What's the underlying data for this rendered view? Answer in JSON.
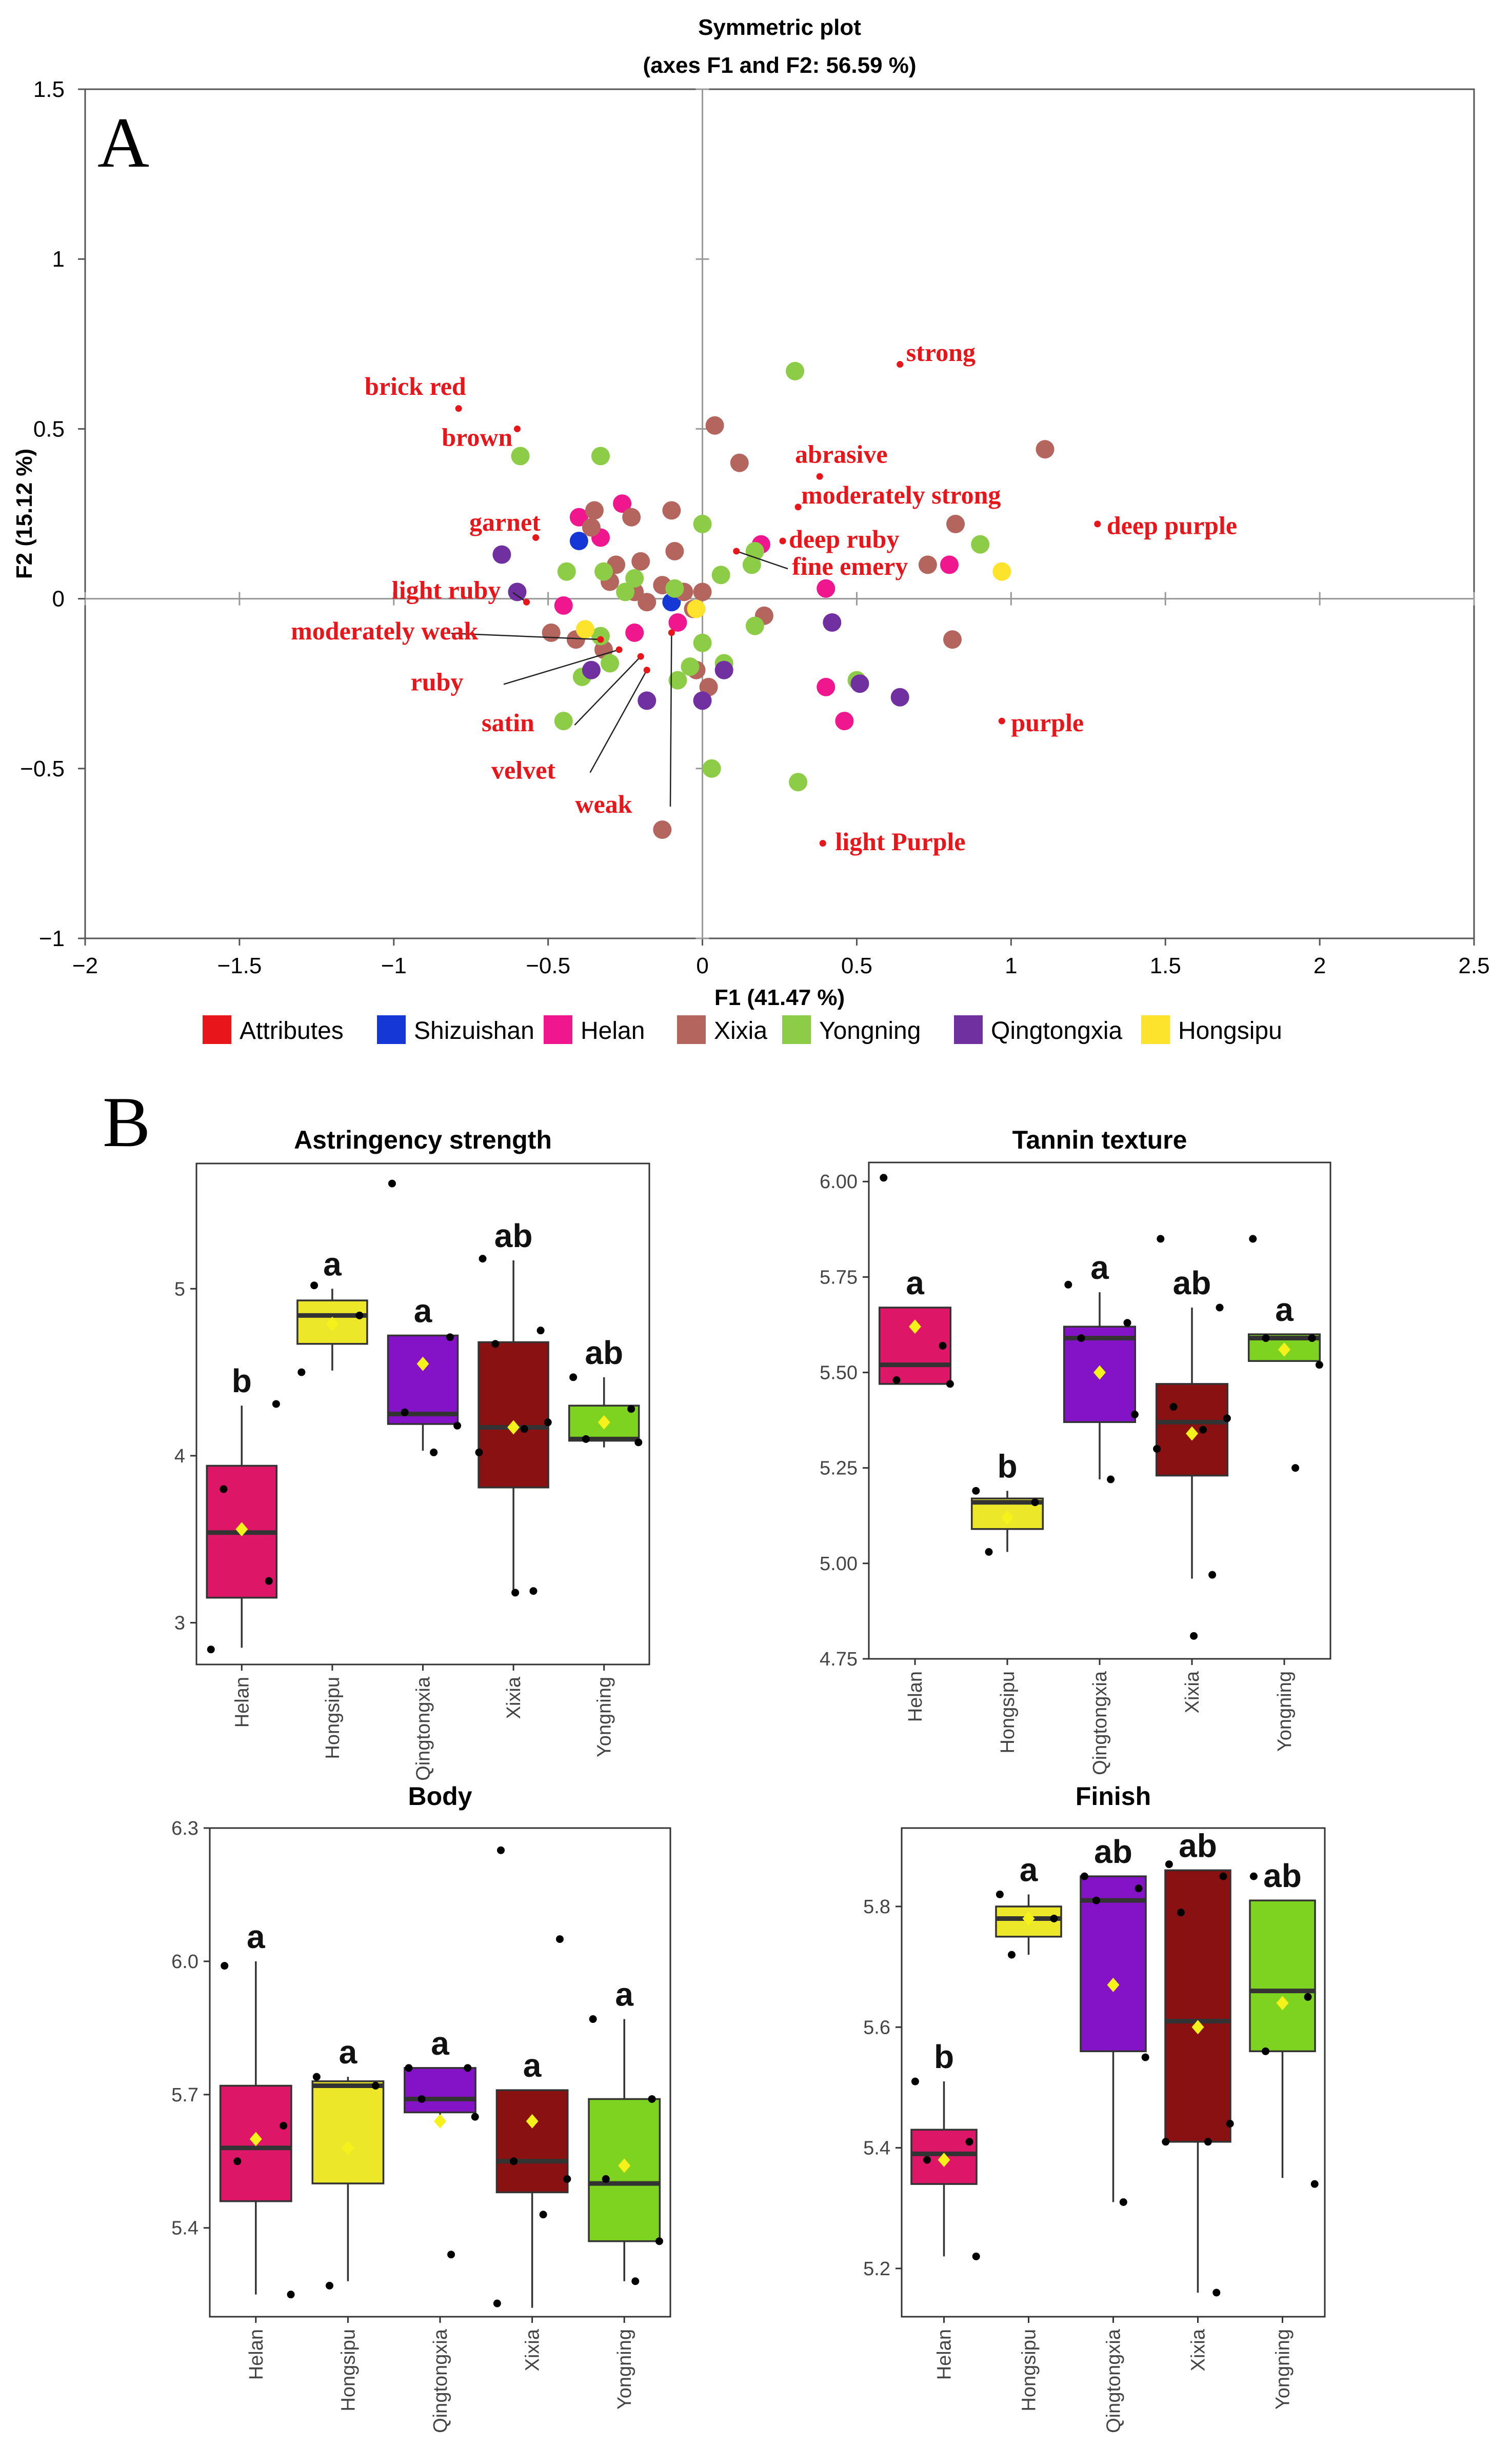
{
  "panel_labels": {
    "a": "A",
    "b": "B"
  },
  "chart_data": [
    {
      "type": "scatter",
      "title": "Symmetric plot",
      "subtitle": "(axes F1 and F2: 56.59 %)",
      "xlabel": "F1 (41.47 %)",
      "ylabel": "F2 (15.12 %)",
      "xlim": [
        -2,
        2.5
      ],
      "ylim": [
        -1,
        1.5
      ],
      "xticks": [
        -2,
        -1.5,
        -1,
        -0.5,
        0,
        0.5,
        1,
        1.5,
        2,
        2.5
      ],
      "xtick_labels": [
        "−2",
        "−1.5",
        "−1",
        "−0.5",
        "0",
        "0.5",
        "1",
        "1.5",
        "2",
        "2.5"
      ],
      "yticks": [
        -1,
        -0.5,
        0,
        0.5,
        1,
        1.5
      ],
      "ytick_labels": [
        "−1",
        "−0.5",
        "0",
        "0.5",
        "1",
        "1.5"
      ],
      "colors": {
        "Attributes": "#e8151b",
        "Shizuishan": "#1537d6",
        "Helan": "#f0168e",
        "Xixia": "#b4655e",
        "Yongning": "#8ccc46",
        "Qingtongxia": "#7030a0",
        "Hongsipu": "#fde32b"
      },
      "legend": [
        "Attributes",
        "Shizuishan",
        "Helan",
        "Xixia",
        "Yongning",
        "Qingtongxia",
        "Hongsipu"
      ],
      "attributes": [
        {
          "label": "brick red",
          "x": -0.79,
          "y": 0.56,
          "lx": -0.93,
          "ly": 0.6,
          "anchor": "middle"
        },
        {
          "label": "brown",
          "x": -0.6,
          "y": 0.5,
          "lx": -0.73,
          "ly": 0.45,
          "anchor": "middle"
        },
        {
          "label": "garnet",
          "x": -0.54,
          "y": 0.18,
          "lx": -0.64,
          "ly": 0.2,
          "anchor": "middle"
        },
        {
          "label": "light ruby",
          "x": -0.57,
          "y": -0.01,
          "lx": -0.83,
          "ly": 0.0,
          "anchor": "middle",
          "line": true
        },
        {
          "label": "moderately weak",
          "x": -0.33,
          "y": -0.12,
          "lx": -1.03,
          "ly": -0.12,
          "anchor": "middle",
          "line": true
        },
        {
          "label": "ruby",
          "x": -0.27,
          "y": -0.15,
          "lx": -0.86,
          "ly": -0.27,
          "anchor": "middle",
          "line": true
        },
        {
          "label": "satin",
          "x": -0.2,
          "y": -0.17,
          "lx": -0.63,
          "ly": -0.39,
          "anchor": "middle",
          "line": true
        },
        {
          "label": "velvet",
          "x": -0.18,
          "y": -0.21,
          "lx": -0.58,
          "ly": -0.53,
          "anchor": "middle",
          "line": true
        },
        {
          "label": "weak",
          "x": -0.1,
          "y": -0.1,
          "lx": -0.32,
          "ly": -0.63,
          "anchor": "middle",
          "line": true
        },
        {
          "label": "strong",
          "x": 0.64,
          "y": 0.69,
          "lx": 0.66,
          "ly": 0.7,
          "anchor": "start"
        },
        {
          "label": "abrasive",
          "x": 0.38,
          "y": 0.36,
          "lx": 0.3,
          "ly": 0.4,
          "anchor": "start"
        },
        {
          "label": "moderately strong",
          "x": 0.31,
          "y": 0.27,
          "lx": 0.32,
          "ly": 0.28,
          "anchor": "start"
        },
        {
          "label": "deep purple",
          "x": 1.28,
          "y": 0.22,
          "lx": 1.31,
          "ly": 0.19,
          "anchor": "start"
        },
        {
          "label": "deep ruby",
          "x": 0.26,
          "y": 0.17,
          "lx": 0.28,
          "ly": 0.15,
          "anchor": "start"
        },
        {
          "label": "fine emery",
          "x": 0.11,
          "y": 0.14,
          "lx": 0.29,
          "ly": 0.07,
          "anchor": "start",
          "line": true
        },
        {
          "label": "purple",
          "x": 0.97,
          "y": -0.36,
          "lx": 1.0,
          "ly": -0.39,
          "anchor": "start"
        },
        {
          "label": "light Purple",
          "x": 0.39,
          "y": -0.72,
          "lx": 0.43,
          "ly": -0.74,
          "anchor": "start"
        }
      ],
      "points": {
        "Shizuishan": [
          [
            -0.4,
            0.17
          ],
          [
            -0.1,
            -0.01
          ]
        ],
        "Helan": [
          [
            -0.4,
            0.24
          ],
          [
            -0.33,
            0.18
          ],
          [
            -0.26,
            0.28
          ],
          [
            -0.45,
            -0.02
          ],
          [
            -0.22,
            -0.1
          ],
          [
            -0.08,
            -0.07
          ],
          [
            0.19,
            0.16
          ],
          [
            0.4,
            0.03
          ],
          [
            0.4,
            -0.26
          ],
          [
            0.46,
            -0.36
          ],
          [
            0.8,
            0.1
          ]
        ],
        "Xixia": [
          [
            -0.35,
            0.26
          ],
          [
            -0.23,
            0.24
          ],
          [
            -0.1,
            0.26
          ],
          [
            0.04,
            0.51
          ],
          [
            0.12,
            0.4
          ],
          [
            -0.36,
            0.21
          ],
          [
            -0.28,
            0.1
          ],
          [
            -0.2,
            0.11
          ],
          [
            -0.13,
            0.04
          ],
          [
            -0.09,
            0.14
          ],
          [
            -0.3,
            0.05
          ],
          [
            -0.22,
            0.02
          ],
          [
            -0.18,
            -0.01
          ],
          [
            -0.06,
            0.02
          ],
          [
            -0.03,
            -0.03
          ],
          [
            0.0,
            0.02
          ],
          [
            0.2,
            -0.05
          ],
          [
            -0.49,
            -0.1
          ],
          [
            -0.41,
            -0.12
          ],
          [
            -0.32,
            -0.15
          ],
          [
            -0.02,
            -0.21
          ],
          [
            0.02,
            -0.26
          ],
          [
            -0.13,
            -0.68
          ],
          [
            0.73,
            0.1
          ],
          [
            0.82,
            0.22
          ],
          [
            0.81,
            -0.12
          ],
          [
            1.11,
            0.44
          ]
        ],
        "Yongning": [
          [
            -0.59,
            0.42
          ],
          [
            -0.33,
            0.42
          ],
          [
            0.3,
            0.67
          ],
          [
            -0.09,
            0.03
          ],
          [
            -0.22,
            0.06
          ],
          [
            0.06,
            0.07
          ],
          [
            0.17,
            0.14
          ],
          [
            0.0,
            0.22
          ],
          [
            0.16,
            0.1
          ],
          [
            -0.32,
            0.08
          ],
          [
            -0.25,
            0.02
          ],
          [
            -0.44,
            0.08
          ],
          [
            0.0,
            -0.13
          ],
          [
            0.07,
            -0.19
          ],
          [
            -0.04,
            -0.2
          ],
          [
            0.17,
            -0.08
          ],
          [
            -0.33,
            -0.11
          ],
          [
            -0.08,
            -0.24
          ],
          [
            -0.3,
            -0.19
          ],
          [
            -0.39,
            -0.23
          ],
          [
            0.5,
            -0.24
          ],
          [
            0.9,
            0.16
          ],
          [
            0.03,
            -0.5
          ],
          [
            0.31,
            -0.54
          ],
          [
            -0.45,
            -0.36
          ]
        ],
        "Qingtongxia": [
          [
            -0.65,
            0.13
          ],
          [
            -0.6,
            0.02
          ],
          [
            -0.36,
            -0.21
          ],
          [
            -0.18,
            -0.3
          ],
          [
            0.07,
            -0.21
          ],
          [
            0.0,
            -0.3
          ],
          [
            0.51,
            -0.25
          ],
          [
            0.64,
            -0.29
          ],
          [
            0.42,
            -0.07
          ]
        ],
        "Hongsipu": [
          [
            -0.02,
            -0.03
          ],
          [
            -0.38,
            -0.09
          ],
          [
            0.97,
            0.08
          ]
        ]
      }
    },
    {
      "type": "box",
      "title": "Astringency strength",
      "categories": [
        "Helan",
        "Hongsipu",
        "Qingtongxia",
        "Xixia",
        "Yongning"
      ],
      "ylim": [
        2.75,
        5.75
      ],
      "yticks": [
        3,
        4,
        5
      ],
      "ytick_labels": [
        "3",
        "4",
        "5"
      ],
      "boxes": [
        {
          "q1": 3.15,
          "median": 3.54,
          "q3": 3.94,
          "wlo": 2.85,
          "whi": 4.3,
          "mean": 3.56,
          "letter": "b",
          "points": [
            2.84,
            3.25,
            3.8,
            4.31
          ]
        },
        {
          "q1": 4.67,
          "median": 4.84,
          "q3": 4.93,
          "wlo": 4.51,
          "whi": 5.0,
          "mean": 4.79,
          "letter": "a",
          "points": [
            4.5,
            4.84,
            5.02
          ]
        },
        {
          "q1": 4.19,
          "median": 4.25,
          "q3": 4.72,
          "wlo": 4.03,
          "whi": 4.72,
          "mean": 4.55,
          "letter": "a",
          "points": [
            5.63,
            4.71,
            4.26,
            4.18,
            4.02
          ]
        },
        {
          "q1": 3.81,
          "median": 4.17,
          "q3": 4.68,
          "wlo": 3.18,
          "whi": 5.17,
          "mean": 4.17,
          "letter": "ab",
          "points": [
            5.18,
            4.75,
            4.67,
            4.2,
            4.16,
            4.02,
            3.19,
            3.18
          ]
        },
        {
          "q1": 4.09,
          "median": 4.1,
          "q3": 4.3,
          "wlo": 4.05,
          "whi": 4.47,
          "mean": 4.2,
          "letter": "ab",
          "points": [
            4.47,
            4.28,
            4.1,
            4.08
          ]
        }
      ]
    },
    {
      "type": "box",
      "title": "Tannin texture",
      "categories": [
        "Helan",
        "Hongsipu",
        "Qingtongxia",
        "Xixia",
        "Yongning"
      ],
      "ylim": [
        4.75,
        6.05
      ],
      "yticks": [
        4.75,
        5.0,
        5.25,
        5.5,
        5.75,
        6.0
      ],
      "ytick_labels": [
        "4.75",
        "5.00",
        "5.25",
        "5.50",
        "5.75",
        "6.00"
      ],
      "boxes": [
        {
          "q1": 5.47,
          "median": 5.52,
          "q3": 5.67,
          "wlo": 5.47,
          "whi": 5.67,
          "mean": 5.62,
          "letter": "a",
          "points": [
            6.01,
            5.57,
            5.48,
            5.47
          ]
        },
        {
          "q1": 5.09,
          "median": 5.16,
          "q3": 5.17,
          "wlo": 5.03,
          "whi": 5.19,
          "mean": 5.12,
          "letter": "b",
          "points": [
            5.19,
            5.16,
            5.03
          ]
        },
        {
          "q1": 5.37,
          "median": 5.59,
          "q3": 5.62,
          "wlo": 5.22,
          "whi": 5.71,
          "mean": 5.5,
          "letter": "a",
          "points": [
            5.73,
            5.63,
            5.59,
            5.39,
            5.22
          ]
        },
        {
          "q1": 5.23,
          "median": 5.37,
          "q3": 5.47,
          "wlo": 4.96,
          "whi": 5.67,
          "mean": 5.34,
          "letter": "ab",
          "points": [
            5.85,
            5.67,
            5.41,
            5.38,
            5.35,
            5.3,
            4.97,
            4.81
          ]
        },
        {
          "q1": 5.53,
          "median": 5.59,
          "q3": 5.6,
          "wlo": 5.53,
          "whi": 5.6,
          "mean": 5.56,
          "letter": "a",
          "points": [
            5.85,
            5.59,
            5.59,
            5.52,
            5.25
          ]
        }
      ]
    },
    {
      "type": "box",
      "title": "Body",
      "categories": [
        "Helan",
        "Hongsipu",
        "Qingtongxia",
        "Xixia",
        "Yongning"
      ],
      "ylim": [
        5.2,
        6.3
      ],
      "yticks": [
        5.4,
        5.7,
        6.0,
        6.3
      ],
      "ytick_labels": [
        "5.4",
        "5.7",
        "6.0",
        "6.3"
      ],
      "boxes": [
        {
          "q1": 5.46,
          "median": 5.58,
          "q3": 5.72,
          "wlo": 5.25,
          "whi": 6.0,
          "mean": 5.6,
          "letter": "a",
          "points": [
            5.99,
            5.63,
            5.55,
            5.25
          ]
        },
        {
          "q1": 5.5,
          "median": 5.72,
          "q3": 5.73,
          "wlo": 5.28,
          "whi": 5.74,
          "mean": 5.58,
          "letter": "a",
          "points": [
            5.74,
            5.72,
            5.27
          ]
        },
        {
          "q1": 5.66,
          "median": 5.69,
          "q3": 5.76,
          "wlo": 5.65,
          "whi": 5.76,
          "mean": 5.64,
          "letter": "a",
          "points": [
            5.76,
            5.76,
            5.69,
            5.65,
            5.34
          ]
        },
        {
          "q1": 5.48,
          "median": 5.55,
          "q3": 5.71,
          "wlo": 5.22,
          "whi": 5.71,
          "mean": 5.64,
          "letter": "a",
          "points": [
            6.25,
            6.05,
            5.55,
            5.51,
            5.43,
            5.23
          ]
        },
        {
          "q1": 5.37,
          "median": 5.5,
          "q3": 5.69,
          "wlo": 5.28,
          "whi": 5.87,
          "mean": 5.54,
          "letter": "a",
          "points": [
            5.87,
            5.69,
            5.51,
            5.37,
            5.28
          ]
        }
      ]
    },
    {
      "type": "box",
      "title": "Finish",
      "categories": [
        "Helan",
        "Hongsipu",
        "Qingtongxia",
        "Xixia",
        "Yongning"
      ],
      "ylim": [
        5.12,
        5.93
      ],
      "yticks": [
        5.2,
        5.4,
        5.6,
        5.8
      ],
      "ytick_labels": [
        "5.2",
        "5.4",
        "5.6",
        "5.8"
      ],
      "boxes": [
        {
          "q1": 5.34,
          "median": 5.39,
          "q3": 5.43,
          "wlo": 5.22,
          "whi": 5.51,
          "mean": 5.38,
          "letter": "b",
          "points": [
            5.51,
            5.41,
            5.38,
            5.22
          ]
        },
        {
          "q1": 5.75,
          "median": 5.78,
          "q3": 5.8,
          "wlo": 5.72,
          "whi": 5.82,
          "mean": 5.78,
          "letter": "a",
          "points": [
            5.82,
            5.78,
            5.72
          ]
        },
        {
          "q1": 5.56,
          "median": 5.81,
          "q3": 5.85,
          "wlo": 5.31,
          "whi": 5.85,
          "mean": 5.67,
          "letter": "ab",
          "points": [
            5.85,
            5.83,
            5.81,
            5.55,
            5.31
          ]
        },
        {
          "q1": 5.41,
          "median": 5.61,
          "q3": 5.86,
          "wlo": 5.16,
          "whi": 5.86,
          "mean": 5.6,
          "letter": "ab",
          "points": [
            5.87,
            5.85,
            5.79,
            5.44,
            5.41,
            5.41,
            5.16
          ]
        },
        {
          "q1": 5.56,
          "median": 5.66,
          "q3": 5.81,
          "wlo": 5.35,
          "whi": 5.81,
          "mean": 5.64,
          "letter": "ab",
          "points": [
            5.85,
            5.65,
            5.56,
            5.34
          ]
        }
      ]
    }
  ],
  "box_colors": {
    "Helan": "#dd1667",
    "Hongsipu": "#ede72a",
    "Qingtongxia": "#8413c7",
    "Xixia": "#8a1111",
    "Yongning": "#7ed321"
  }
}
